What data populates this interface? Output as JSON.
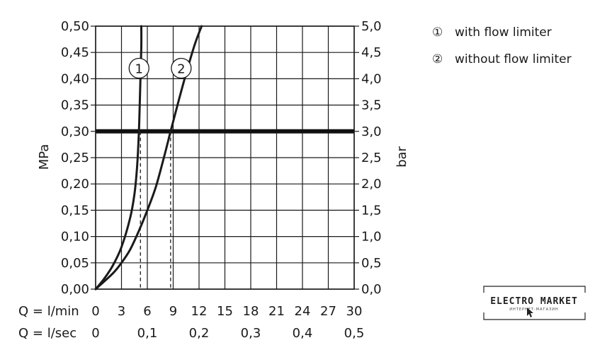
{
  "chart_data": {
    "type": "line",
    "ylabel_left": "MPa",
    "ylabel_right": "bar",
    "xlabel_rows": [
      {
        "label": "Q = l/min",
        "ticks": [
          "0",
          "3",
          "6",
          "9",
          "12",
          "15",
          "18",
          "21",
          "24",
          "27",
          "30"
        ]
      },
      {
        "label": "Q = l/sec",
        "ticks": [
          "0",
          "0,1",
          "0,2",
          "0,3",
          "0,4",
          "0,5"
        ]
      }
    ],
    "yticks_left": [
      "0,00",
      "0,05",
      "0,10",
      "0,15",
      "0,20",
      "0,25",
      "0,30",
      "0,35",
      "0,40",
      "0,45",
      "0,50"
    ],
    "yticks_right": [
      "0,0",
      "0,5",
      "1,0",
      "1,5",
      "2,0",
      "2,5",
      "3,0",
      "3,5",
      "4,0",
      "4,5",
      "5,0"
    ],
    "xlim": [
      0,
      30
    ],
    "ylim": [
      0,
      0.5
    ],
    "grid": true,
    "reference_line": {
      "y": 0.3
    },
    "series": [
      {
        "marker": "1",
        "x": [
          0,
          1,
          2,
          3,
          4,
          4.5,
          4.8,
          5.0,
          5.1,
          5.2,
          5.3,
          5.3
        ],
        "y": [
          0,
          0.02,
          0.045,
          0.08,
          0.135,
          0.18,
          0.23,
          0.29,
          0.34,
          0.4,
          0.46,
          0.5
        ],
        "dashed_drop_x": 5.2
      },
      {
        "marker": "2",
        "x": [
          0,
          2,
          3,
          4,
          5,
          6,
          7,
          8,
          8.7,
          9.5,
          10.5,
          11.5,
          12.3
        ],
        "y": [
          0,
          0.03,
          0.05,
          0.075,
          0.11,
          0.15,
          0.195,
          0.255,
          0.3,
          0.35,
          0.41,
          0.465,
          0.5
        ],
        "dashed_drop_x": 8.7
      }
    ]
  },
  "legend": [
    {
      "symbol": "①",
      "text": "with flow limiter"
    },
    {
      "symbol": "②",
      "text": "without flow limiter"
    }
  ],
  "watermark": {
    "main": "ELECTRO MARKET",
    "sub": "ИНТЕРНЕТ-МАГАЗИН"
  }
}
